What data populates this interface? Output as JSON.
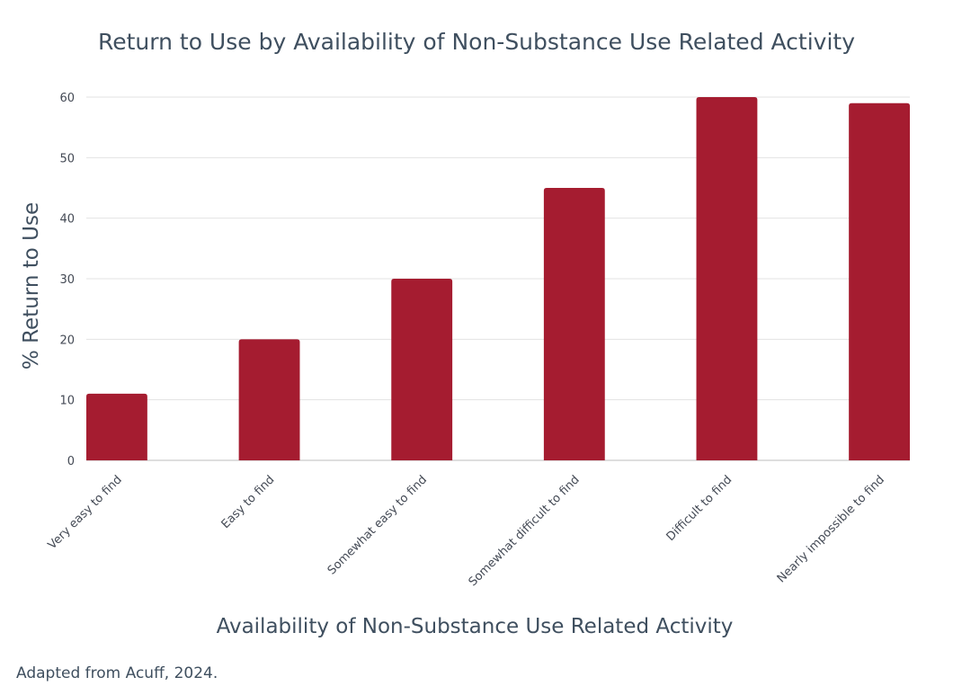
{
  "chart_data": {
    "type": "bar",
    "title": "Return to Use by Availability of Non-Substance Use Related Activity",
    "xlabel": "Availability of Non-Substance Use Related Activity",
    "ylabel": "% Return to Use",
    "categories": [
      "Very easy to find",
      "Easy to find",
      "Somewhat easy to find",
      "Somewhat difficult to find",
      "Difficult to find",
      "Nearly impossible to find"
    ],
    "values": [
      11,
      20,
      30,
      45,
      60,
      59
    ],
    "ylim": [
      0,
      60
    ],
    "yticks": [
      0,
      10,
      20,
      30,
      40,
      50,
      60
    ],
    "grid": true,
    "bar_color": "#a51c30",
    "grid_color": "#e3e3e3"
  },
  "footer": {
    "source_note": "Adapted from Acuff, 2024."
  }
}
